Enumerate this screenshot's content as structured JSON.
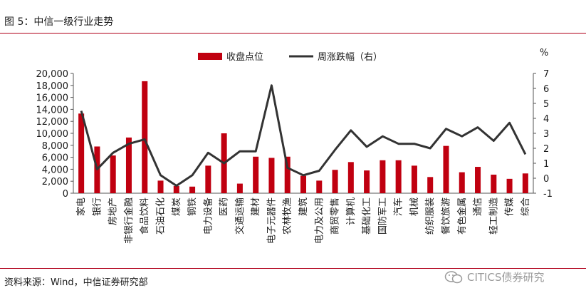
{
  "header": {
    "title": "图 5：中信一级行业走势"
  },
  "footer": {
    "source": "资料来源：Wind，中信证券研究部",
    "watermark": "CITICS债券研究"
  },
  "chart_data": {
    "type": "bar+line",
    "categories": [
      "家电",
      "银行",
      "房地产",
      "非银行金融",
      "食品饮料",
      "石油石化",
      "煤炭",
      "钢铁",
      "电力设备",
      "医药",
      "交通运输",
      "建材",
      "电子元器件",
      "农林牧渔",
      "建筑",
      "电力及公用",
      "商贸零售",
      "计算机",
      "基础化工",
      "国防军工",
      "汽车",
      "机械",
      "纺织服装",
      "餐饮旅游",
      "有色金属",
      "通信",
      "轻工制造",
      "传媒",
      "综合"
    ],
    "series": [
      {
        "name": "收盘点位",
        "axis": "left",
        "type": "bar",
        "color": "#c00010",
        "values": [
          13300,
          7800,
          6300,
          9300,
          18700,
          2100,
          1200,
          1100,
          4600,
          10000,
          1600,
          6100,
          5900,
          6100,
          2900,
          2100,
          3900,
          5200,
          3800,
          5500,
          5500,
          4600,
          2700,
          7900,
          3500,
          4400,
          3100,
          2400,
          3300
        ]
      },
      {
        "name": "周涨跌幅（右）",
        "axis": "right",
        "type": "line",
        "color": "#333333",
        "values": [
          4.5,
          0.6,
          1.7,
          2.3,
          2.6,
          0.2,
          -0.5,
          0.2,
          1.7,
          1.0,
          1.8,
          1.8,
          6.2,
          0.7,
          0.2,
          0.5,
          1.9,
          3.2,
          2.1,
          2.8,
          2.3,
          2.3,
          2.0,
          3.3,
          2.8,
          3.4,
          2.5,
          3.7,
          1.6
        ]
      }
    ],
    "y_left": {
      "min": 0,
      "max": 20000,
      "step": 2000,
      "tick_labels": [
        "0",
        "2,000",
        "4,000",
        "6,000",
        "8,000",
        "10,000",
        "12,000",
        "14,000",
        "16,000",
        "18,000",
        "20,000"
      ]
    },
    "y_right": {
      "min": -1,
      "max": 7,
      "step": 1,
      "unit": "%",
      "tick_labels": [
        "-1",
        "0",
        "1",
        "2",
        "3",
        "4",
        "5",
        "6",
        "7"
      ]
    },
    "legend_position": "top",
    "grid": false
  }
}
